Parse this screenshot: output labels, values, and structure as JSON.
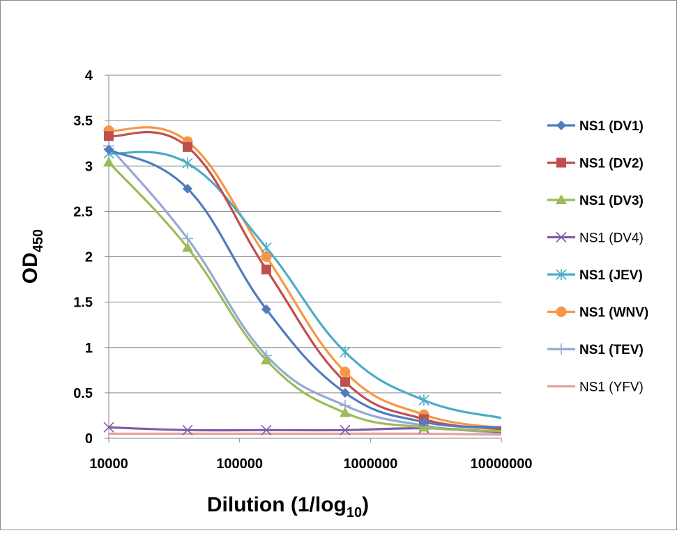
{
  "chart_data": {
    "type": "line",
    "xlabel": "Dilution (1/log",
    "xlabel_sub": "10",
    "xlabel_suffix": ")",
    "ylabel": "OD",
    "ylabel_sub": "450",
    "x_scale": "log",
    "xlim": [
      10000,
      10000000
    ],
    "ylim": [
      0,
      4
    ],
    "x_ticks": [
      "10000",
      "100000",
      "1000000",
      "10000000"
    ],
    "y_ticks": [
      "0",
      "0.5",
      "1",
      "1.5",
      "2",
      "2.5",
      "3",
      "3.5",
      "4"
    ],
    "grid": "horizontal",
    "legend_position": "right",
    "x": [
      10000,
      40000,
      160000,
      640000,
      2560000,
      10240000
    ],
    "series": [
      {
        "name": "NS1 (DV1)",
        "bold": true,
        "color": "#4f7cbf",
        "marker": "diamond",
        "values": [
          3.18,
          2.75,
          1.42,
          0.5,
          0.18,
          0.12
        ]
      },
      {
        "name": "NS1 (DV2)",
        "bold": true,
        "color": "#c0504d",
        "marker": "square",
        "values": [
          3.33,
          3.21,
          1.86,
          0.62,
          0.21,
          0.1
        ]
      },
      {
        "name": "NS1 (DV3)",
        "bold": true,
        "color": "#9bbb59",
        "marker": "triangle",
        "values": [
          3.04,
          2.1,
          0.86,
          0.28,
          0.12,
          0.08
        ]
      },
      {
        "name": "NS1 (DV4)",
        "bold": false,
        "color": "#7f5ca8",
        "marker": "x",
        "values": [
          0.12,
          0.09,
          0.09,
          0.09,
          0.11,
          0.07
        ]
      },
      {
        "name": "NS1 (JEV)",
        "bold": true,
        "color": "#4bacc6",
        "marker": "asterisk",
        "values": [
          3.14,
          3.03,
          2.1,
          0.95,
          0.42,
          0.22
        ]
      },
      {
        "name": "NS1 (WNV)",
        "bold": true,
        "color": "#f79646",
        "marker": "circle",
        "values": [
          3.39,
          3.27,
          2.0,
          0.73,
          0.26,
          0.11
        ]
      },
      {
        "name": "NS1 (TEV)",
        "bold": true,
        "color": "#95a9d2",
        "marker": "plus",
        "values": [
          3.22,
          2.2,
          0.91,
          0.36,
          0.14,
          0.06
        ]
      },
      {
        "name": "NS1 (YFV)",
        "bold": false,
        "color": "#e6a0a0",
        "marker": "none",
        "values": [
          0.05,
          0.05,
          0.05,
          0.05,
          0.05,
          0.04
        ]
      }
    ]
  }
}
